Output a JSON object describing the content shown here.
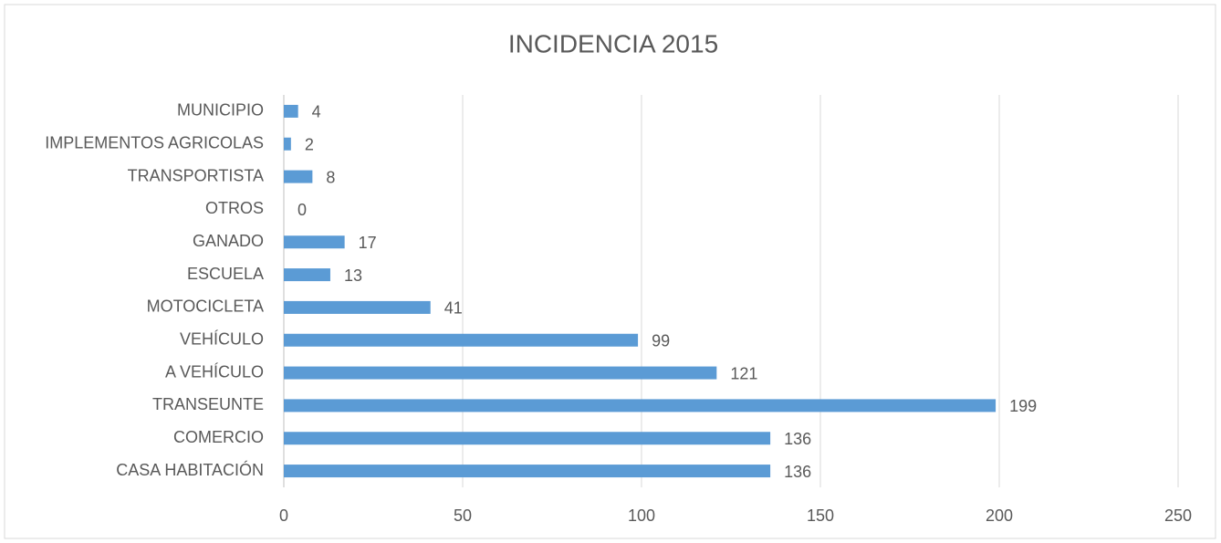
{
  "chart_data": {
    "type": "bar",
    "orientation": "horizontal",
    "title": "INCIDENCIA 2015",
    "categories": [
      "MUNICIPIO",
      "IMPLEMENTOS AGRICOLAS",
      "TRANSPORTISTA",
      "OTROS",
      "GANADO",
      "ESCUELA",
      "MOTOCICLETA",
      "VEHÍCULO",
      "A VEHÍCULO",
      "TRANSEUNTE",
      "COMERCIO",
      "CASA HABITACIÓN"
    ],
    "values": [
      4,
      2,
      8,
      0,
      17,
      13,
      41,
      99,
      121,
      199,
      136,
      136
    ],
    "color": "#5b9bd5",
    "xlim": [
      0,
      250
    ],
    "xticks": [
      0,
      50,
      100,
      150,
      200,
      250
    ],
    "grid": true
  }
}
